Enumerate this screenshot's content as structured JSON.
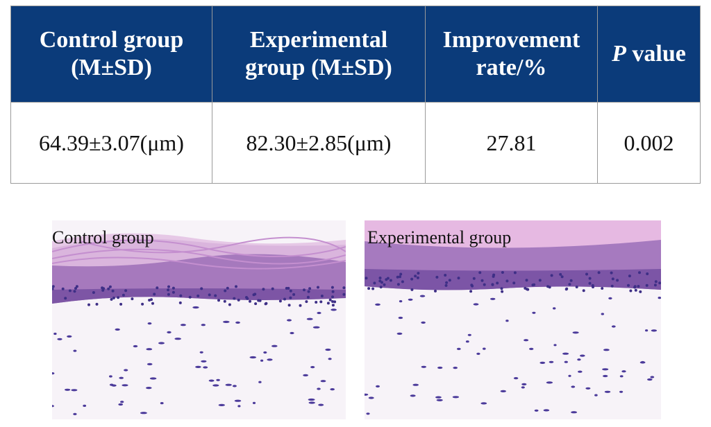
{
  "table": {
    "header": [
      {
        "text": "Control group (M±SD)"
      },
      {
        "text": "Experimental group (M±SD)"
      },
      {
        "text": "Improvement rate/%"
      },
      {
        "italic": "P",
        "text": "value"
      }
    ],
    "rows": [
      [
        "64.39±3.07(μm)",
        "82.30±2.85(μm)",
        "27.81",
        "0.002"
      ]
    ]
  },
  "images": [
    {
      "label": "Control group"
    },
    {
      "label": "Experimental group"
    }
  ]
}
